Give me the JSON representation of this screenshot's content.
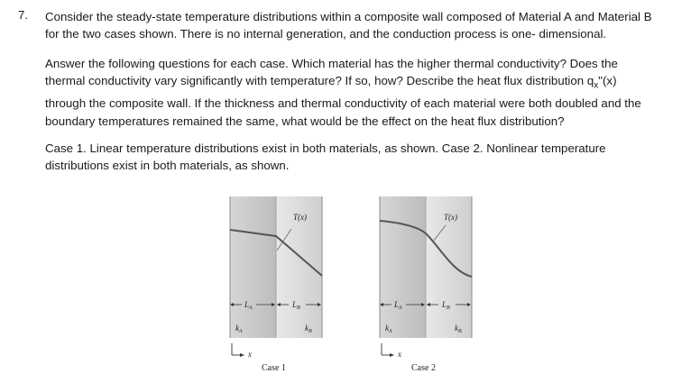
{
  "question": {
    "number": "7.",
    "line1": "Consider the steady-state temperature distributions within a composite wall composed of Material A and Material B",
    "line2": "for the two cases shown. There is no internal generation, and the conduction process is one- dimensional.",
    "p2_line1": "Answer the following questions for each case. Which material has the higher thermal conductivity? Does the",
    "p2_line2": "thermal conductivity vary significantly with temperature? If so, how? Describe the heat flux distribution",
    "p2_flux_q": "q",
    "p2_flux_sub": "x",
    "p2_flux_rest": "\"(x)",
    "p2_line3": "through the composite wall. If the thickness and thermal conductivity of each material were both doubled and the",
    "p2_line4": "boundary temperatures remained the same, what would be the effect on the heat flux distribution?",
    "p3_line1": "Case 1. Linear temperature distributions exist in both materials, as shown.  Case 2. Nonlinear temperature",
    "p3_line2": "distributions exist in both materials, as shown."
  },
  "figures": [
    {
      "caption": "Case 1",
      "temp_label": "T(x)",
      "LA": "L",
      "LA_sub": "A",
      "LB": "L",
      "LB_sub": "B",
      "kA": "k",
      "kA_sub": "A",
      "kB": "k",
      "kB_sub": "B",
      "x_label": "x"
    },
    {
      "caption": "Case 2",
      "temp_label": "T(x)",
      "LA": "L",
      "LA_sub": "A",
      "LB": "L",
      "LB_sub": "B",
      "kA": "k",
      "kA_sub": "A",
      "kB": "k",
      "kB_sub": "B",
      "x_label": "x"
    }
  ],
  "colors": {
    "wall_light": "#e6e6e6",
    "wall_mid": "#c8c8c8",
    "curve": "#555555"
  }
}
